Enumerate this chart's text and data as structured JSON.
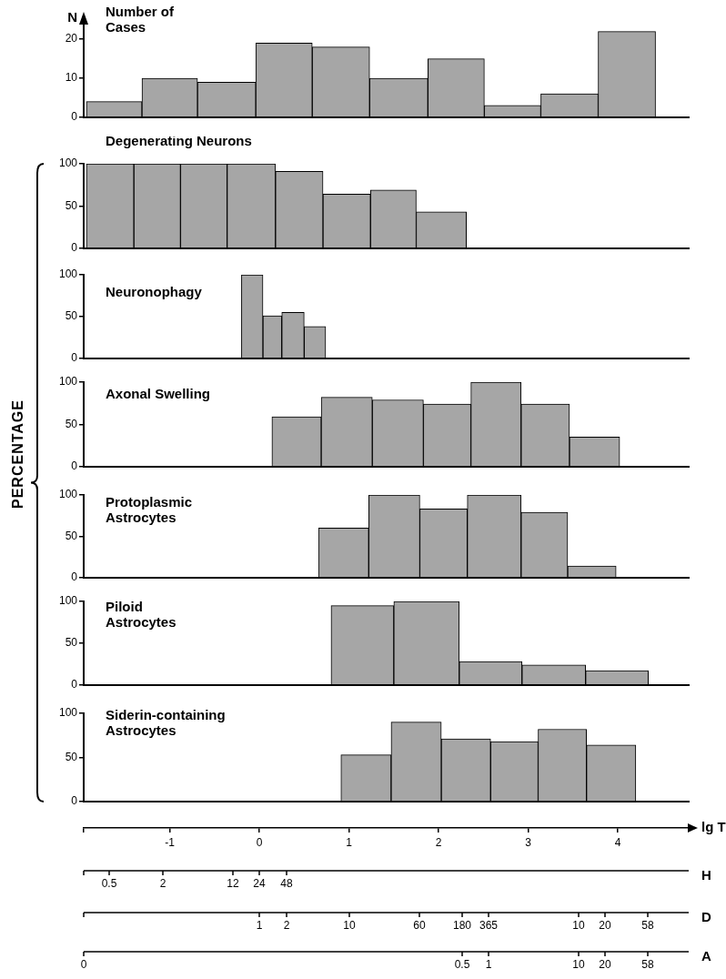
{
  "chart_data": [
    {
      "type": "histogram",
      "title": "Number of Cases",
      "ylabel": "N",
      "bins": [
        -1.93,
        -1.31,
        -0.69,
        -0.04,
        0.59,
        1.23,
        1.88,
        2.51,
        3.14,
        3.78,
        4.42
      ],
      "values": [
        4,
        10,
        9,
        19,
        18,
        10,
        15,
        3,
        6,
        22
      ],
      "color": "#a6a6a6",
      "xlim": [
        -1.96,
        4.79
      ],
      "ylim": [
        0,
        24
      ],
      "yticks": [
        0,
        10,
        20
      ],
      "tick_labels": "y"
    },
    {
      "type": "histogram",
      "title": "Degenerating Neurons",
      "bins": [
        -1.93,
        -1.4,
        -0.88,
        -0.36,
        0.18,
        0.71,
        1.24,
        1.75,
        2.31
      ],
      "values": [
        100,
        100,
        100,
        100,
        91,
        64,
        69,
        43
      ],
      "color": "#a6a6a6",
      "xlim": [
        -1.96,
        4.79
      ],
      "ylim": [
        0,
        100
      ],
      "yticks": [
        0,
        50,
        100
      ],
      "tick_labels": "y"
    },
    {
      "type": "histogram",
      "title": "Neuronophagy",
      "bins": [
        -0.2,
        0.04,
        0.25,
        0.5,
        0.74
      ],
      "values": [
        100,
        51,
        55,
        38
      ],
      "color": "#a6a6a6",
      "xlim": [
        -1.96,
        4.79
      ],
      "ylim": [
        0,
        100
      ],
      "yticks": [
        0,
        50,
        100
      ],
      "tick_labels": "y"
    },
    {
      "type": "histogram",
      "title": "Axonal Swelling",
      "ylabel": "PERCENTAGE",
      "bins": [
        0.14,
        0.69,
        1.26,
        1.83,
        2.36,
        2.92,
        3.46,
        4.02
      ],
      "values": [
        59,
        82,
        79,
        74,
        100,
        74,
        35
      ],
      "color": "#a6a6a6",
      "xlim": [
        -1.96,
        4.79
      ],
      "ylim": [
        0,
        100
      ],
      "yticks": [
        0,
        50,
        100
      ],
      "tick_labels": "y"
    },
    {
      "type": "histogram",
      "title": "Protoplasmic Astrocytes",
      "bins": [
        0.66,
        1.22,
        1.79,
        2.32,
        2.92,
        3.44,
        3.98
      ],
      "values": [
        60,
        100,
        83,
        100,
        79,
        14
      ],
      "color": "#a6a6a6",
      "xlim": [
        -1.96,
        4.79
      ],
      "ylim": [
        0,
        100
      ],
      "yticks": [
        0,
        50,
        100
      ],
      "tick_labels": "y"
    },
    {
      "type": "histogram",
      "title": "Piloid Astrocytes",
      "bins": [
        0.8,
        1.5,
        2.23,
        2.93,
        3.64,
        4.34
      ],
      "values": [
        95,
        100,
        28,
        24,
        17
      ],
      "color": "#a6a6a6",
      "xlim": [
        -1.96,
        4.79
      ],
      "ylim": [
        0,
        100
      ],
      "yticks": [
        0,
        50,
        100
      ],
      "tick_labels": "y"
    },
    {
      "type": "histogram",
      "title": "Siderin-containing Astrocytes",
      "bins": [
        0.91,
        1.47,
        2.03,
        2.58,
        3.11,
        3.65,
        4.2
      ],
      "values": [
        53,
        90,
        71,
        68,
        82,
        64
      ],
      "color": "#a6a6a6",
      "xlim": [
        -1.96,
        4.79
      ],
      "ylim": [
        0,
        100
      ],
      "yticks": [
        0,
        50,
        100
      ],
      "xlabel": "lg T",
      "xticks": [
        {
          "value": -1.96,
          "label": null
        },
        -1,
        0,
        1,
        2,
        3,
        4
      ],
      "annotations": [
        "H",
        "0.5",
        "2",
        "12",
        "24",
        "48",
        "D",
        "1",
        "2",
        "10",
        "60",
        "180",
        "365",
        "10",
        "20",
        "58",
        "A",
        "0",
        "0.5",
        "1",
        "10",
        "20",
        "58"
      ]
    }
  ]
}
